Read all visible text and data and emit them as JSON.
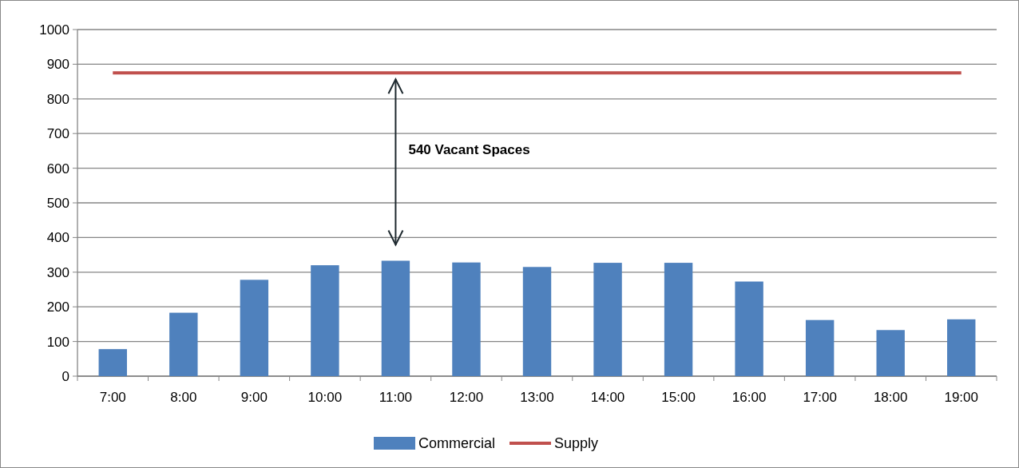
{
  "chart_data": {
    "type": "bar",
    "categories": [
      "7:00",
      "8:00",
      "9:00",
      "10:00",
      "11:00",
      "12:00",
      "13:00",
      "14:00",
      "15:00",
      "16:00",
      "17:00",
      "18:00",
      "19:00"
    ],
    "series": [
      {
        "name": "Commercial",
        "color": "#4f81bd",
        "values": [
          78,
          183,
          278,
          320,
          333,
          328,
          315,
          327,
          327,
          273,
          162,
          133,
          164
        ]
      },
      {
        "name": "Supply",
        "type": "line",
        "color": "#c0504d",
        "values": [
          875,
          875,
          875,
          875,
          875,
          875,
          875,
          875,
          875,
          875,
          875,
          875,
          875
        ]
      }
    ],
    "ylim": [
      0,
      1000
    ],
    "yticks": [
      0,
      100,
      200,
      300,
      400,
      500,
      600,
      700,
      800,
      900,
      1000
    ],
    "grid": "y",
    "legend": "bottom",
    "annotations": [
      "540 Vacant Spaces"
    ]
  }
}
